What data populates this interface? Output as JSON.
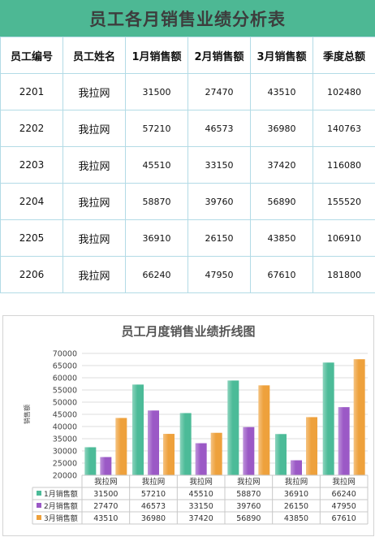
{
  "sheet_title": "员工各月销售业绩分析表",
  "headers": [
    "员工编号",
    "员工姓名",
    "1月销售额",
    "2月销售额",
    "3月销售额",
    "季度总额"
  ],
  "rows": [
    {
      "id": "2201",
      "name": "我拉网",
      "m1": "31500",
      "m2": "27470",
      "m3": "43510",
      "total": "102480"
    },
    {
      "id": "2202",
      "name": "我拉网",
      "m1": "57210",
      "m2": "46573",
      "m3": "36980",
      "total": "140763"
    },
    {
      "id": "2203",
      "name": "我拉网",
      "m1": "45510",
      "m2": "33150",
      "m3": "37420",
      "total": "116080"
    },
    {
      "id": "2204",
      "name": "我拉网",
      "m1": "58870",
      "m2": "39760",
      "m3": "56890",
      "total": "155520"
    },
    {
      "id": "2205",
      "name": "我拉网",
      "m1": "36910",
      "m2": "26150",
      "m3": "43850",
      "total": "106910"
    },
    {
      "id": "2206",
      "name": "我拉网",
      "m1": "66240",
      "m2": "47950",
      "m3": "67610",
      "total": "181800"
    }
  ],
  "chart_data": {
    "type": "bar",
    "title": "员工月度销售业绩折线图",
    "ylabel": "销售额",
    "xlabel": "",
    "categories": [
      "我拉网",
      "我拉网",
      "我拉网",
      "我拉网",
      "我拉网",
      "我拉网"
    ],
    "ylim": [
      20000,
      70000
    ],
    "yticks": [
      20000,
      25000,
      30000,
      35000,
      40000,
      45000,
      50000,
      55000,
      60000,
      65000,
      70000
    ],
    "grid": true,
    "legend": "data-table-left",
    "series": [
      {
        "name": "1月销售额",
        "color": "#4cbb98",
        "values": [
          31500,
          57210,
          45510,
          58870,
          36910,
          66240
        ]
      },
      {
        "name": "2月销售额",
        "color": "#9b59c6",
        "values": [
          27470,
          46573,
          33150,
          39760,
          26150,
          47950
        ]
      },
      {
        "name": "3月销售额",
        "color": "#eea13c",
        "values": [
          43510,
          36980,
          37420,
          56890,
          43850,
          67610
        ]
      }
    ]
  }
}
